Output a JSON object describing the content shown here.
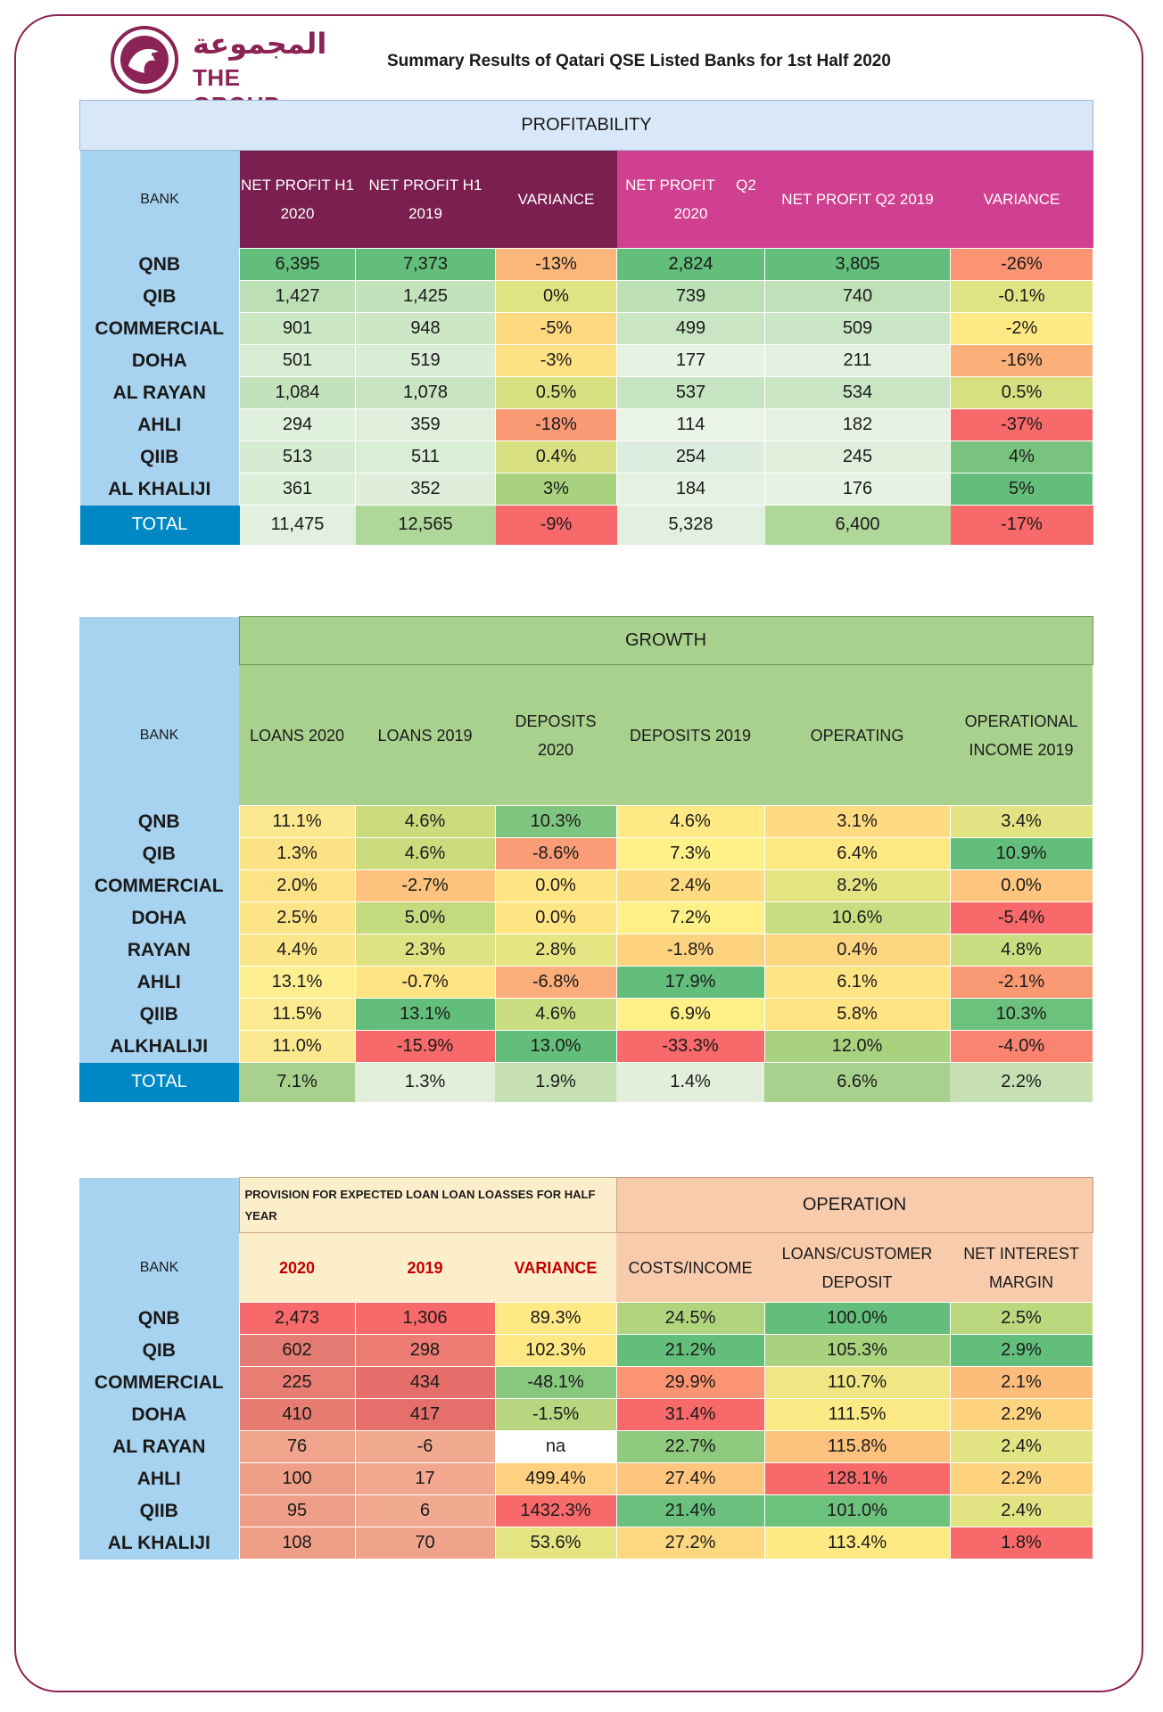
{
  "header": {
    "logo_arabic": "المجموعة",
    "logo_english": "THE GROUP",
    "title": "Summary Results of Qatari QSE Listed Banks for 1st Half 2020"
  },
  "colors": {
    "brand": "#8b2355",
    "bank_col": "#a8d3f0",
    "total": "#0088c4",
    "h1_header": "#7a1f4f",
    "q2_header": "#d04090",
    "growth_header": "#a9d18e",
    "provision_header": "#fdeecb",
    "operation_header": "#f8cbad"
  },
  "profitability": {
    "section_title": "PROFITABILITY",
    "bank_header": "BANK",
    "headers": [
      "NET PROFIT H1 2020",
      "NET PROFIT H1 2019",
      "VARIANCE",
      "NET PROFIT     Q2 2020",
      "NET PROFIT Q2 2019",
      "VARIANCE"
    ],
    "rows": [
      {
        "bank": "QNB",
        "values": [
          "6,395",
          "7,373",
          "-13%",
          "2,824",
          "3,805",
          "-26%"
        ],
        "colors": [
          "#63be7b",
          "#63be7b",
          "#fbb77a",
          "#63be7b",
          "#63be7b",
          "#fa9473"
        ]
      },
      {
        "bank": "QIB",
        "values": [
          "1,427",
          "1,425",
          "0%",
          "739",
          "740",
          "-0.1%"
        ],
        "colors": [
          "#bcdfb5",
          "#c2e2bb",
          "#e0e383",
          "#bde0b7",
          "#bfe0b9",
          "#e0e383"
        ]
      },
      {
        "bank": "COMMERCIAL",
        "values": [
          "901",
          "948",
          "-5%",
          "499",
          "509",
          "-2%"
        ],
        "colors": [
          "#cae6c3",
          "#cde7c6",
          "#fed980",
          "#c9e5c4",
          "#cae5c5",
          "#ffe984"
        ]
      },
      {
        "bank": "DOHA",
        "values": [
          "501",
          "519",
          "-3%",
          "177",
          "211",
          "-16%"
        ],
        "colors": [
          "#d7ecd3",
          "#d9ecd5",
          "#fee182",
          "#e6f2e3",
          "#e2f0df",
          "#fbb07a"
        ]
      },
      {
        "bank": "AL RAYAN",
        "values": [
          "1,084",
          "1,078",
          "0.5%",
          "537",
          "534",
          "0.5%"
        ],
        "colors": [
          "#c3e2bc",
          "#c8e4c1",
          "#d6e081",
          "#c7e4c2",
          "#c9e5c4",
          "#d6e081"
        ]
      },
      {
        "bank": "AHLI",
        "values": [
          "294",
          "359",
          "-18%",
          "114",
          "182",
          "-37%"
        ],
        "colors": [
          "#dff0dc",
          "#dfefdb",
          "#fa9a74",
          "#e9f4e7",
          "#e5f2e2",
          "#f8696b"
        ]
      },
      {
        "bank": "QIIB",
        "values": [
          "513",
          "511",
          "0.4%",
          "254",
          "245",
          "4%"
        ],
        "colors": [
          "#d6ebd2",
          "#daedd6",
          "#d8e081",
          "#dcede0",
          "#dfefdc",
          "#78c47e"
        ]
      },
      {
        "bank": "AL KHALIJI",
        "values": [
          "361",
          "352",
          "3%",
          "184",
          "176",
          "5%"
        ],
        "colors": [
          "#dcefd8",
          "#deeeda",
          "#a9d27f",
          "#e5f2e2",
          "#e6f2e3",
          "#63be7b"
        ]
      }
    ],
    "total": {
      "label": "TOTAL",
      "values": [
        "11,475",
        "12,565",
        "-9%",
        "5,328",
        "6,400",
        "-17%"
      ],
      "colors": [
        "#e2f0df",
        "#b0d79a",
        "#f8696b",
        "#e2f0df",
        "#b0d79a",
        "#f8696b"
      ]
    }
  },
  "growth": {
    "section_title": "GROWTH",
    "bank_header": "BANK",
    "headers": [
      "LOANS 2020",
      "LOANS 2019",
      "DEPOSITS 2020",
      "DEPOSITS 2019",
      "OPERATING",
      "OPERATIONAL INCOME 2019"
    ],
    "rows": [
      {
        "bank": "QNB",
        "values": [
          "11.1%",
          "4.6%",
          "10.3%",
          "4.6%",
          "3.1%",
          "3.4%"
        ],
        "colors": [
          "#fce98f",
          "#cbdc7f",
          "#7ec57f",
          "#ffe984",
          "#fedb81",
          "#e3e383"
        ]
      },
      {
        "bank": "QIB",
        "values": [
          "1.3%",
          "4.6%",
          "-8.6%",
          "7.3%",
          "6.4%",
          "10.9%"
        ],
        "colors": [
          "#fde285",
          "#cbdc7f",
          "#fa9c75",
          "#fff088",
          "#fee884",
          "#63be7b"
        ]
      },
      {
        "bank": "COMMERCIAL",
        "values": [
          "2.0%",
          "-2.7%",
          "0.0%",
          "2.4%",
          "8.2%",
          "0.0%"
        ],
        "colors": [
          "#fde386",
          "#fdc27d",
          "#ffe584",
          "#fedb81",
          "#e5e483",
          "#fdc57e"
        ]
      },
      {
        "bank": "DOHA",
        "values": [
          "2.5%",
          "5.0%",
          "0.0%",
          "7.2%",
          "10.6%",
          "-5.4%"
        ],
        "colors": [
          "#fde487",
          "#c3da7f",
          "#ffe584",
          "#fff088",
          "#c8dd81",
          "#f8696b"
        ]
      },
      {
        "bank": "RAYAN",
        "values": [
          "4.4%",
          "2.3%",
          "2.8%",
          "-1.8%",
          "0.4%",
          "4.8%"
        ],
        "colors": [
          "#fde689",
          "#dee282",
          "#e6e483",
          "#fed380",
          "#fed580",
          "#cade81"
        ]
      },
      {
        "bank": "AHLI",
        "values": [
          "13.1%",
          "-0.7%",
          "-6.8%",
          "17.9%",
          "6.1%",
          "-2.1%"
        ],
        "colors": [
          "#fcee91",
          "#fee482",
          "#fbae79",
          "#63be7b",
          "#fee483",
          "#fa9a74"
        ]
      },
      {
        "bank": "QIIB",
        "values": [
          "11.5%",
          "13.1%",
          "4.6%",
          "6.9%",
          "5.8%",
          "10.3%"
        ],
        "colors": [
          "#fcea90",
          "#63be7b",
          "#cbdd81",
          "#ffef87",
          "#fee383",
          "#6cc17c"
        ]
      },
      {
        "bank": "ALKHALIJI",
        "values": [
          "11.0%",
          "-15.9%",
          "13.0%",
          "-33.3%",
          "12.0%",
          "-4.0%"
        ],
        "colors": [
          "#fce98f",
          "#f8696b",
          "#63be7b",
          "#f8696b",
          "#a9d27f",
          "#f98470"
        ]
      }
    ],
    "total": {
      "label": "TOTAL",
      "values": [
        "7.1%",
        "1.3%",
        "1.9%",
        "1.4%",
        "6.6%",
        "2.2%"
      ],
      "colors": [
        "#a9d18e",
        "#e2efda",
        "#c6e0b4",
        "#e2efda",
        "#a9d18e",
        "#c6e0b4"
      ]
    }
  },
  "provision": {
    "section_title": "PROVISION FOR EXPECTED LOAN LOAN LOASSES FOR HALF YEAR",
    "operation_title": "OPERATION",
    "bank_header": "BANK",
    "headers": [
      "2020",
      "2019",
      "VARIANCE",
      "COSTS/INCOME",
      "LOANS/CUSTOMER DEPOSIT",
      "NET INTEREST MARGIN"
    ],
    "rows": [
      {
        "bank": "QNB",
        "values": [
          "2,473",
          "1,306",
          "89.3%",
          "24.5%",
          "100.0%",
          "2.5%"
        ],
        "colors": [
          "#f8696b",
          "#f8696b",
          "#ffe984",
          "#b1d47f",
          "#63be7b",
          "#bbd87f"
        ]
      },
      {
        "bank": "QIB",
        "values": [
          "602",
          "298",
          "102.3%",
          "21.2%",
          "105.3%",
          "2.9%"
        ],
        "colors": [
          "#e57c73",
          "#ec7c74",
          "#ffe883",
          "#63be7b",
          "#a9d27f",
          "#63be7b"
        ]
      },
      {
        "bank": "COMMERCIAL",
        "values": [
          "225",
          "434",
          "-48.1%",
          "29.9%",
          "110.7%",
          "2.1%"
        ],
        "colors": [
          "#e77d73",
          "#e66e6a",
          "#87c77e",
          "#fa9473",
          "#f0e784",
          "#fcbd7b"
        ]
      },
      {
        "bank": "DOHA",
        "values": [
          "410",
          "417",
          "-1.5%",
          "31.4%",
          "111.5%",
          "2.2%"
        ],
        "colors": [
          "#e77c72",
          "#e66f6b",
          "#b8d67f",
          "#f8696b",
          "#fbe985",
          "#fed380"
        ]
      },
      {
        "bank": "AL RAYAN",
        "values": [
          "76",
          "-6",
          "na",
          "22.7%",
          "115.8%",
          "2.4%"
        ],
        "colors": [
          "#f0a48c",
          "#f1a98f",
          "#ffffff",
          "#8ec97e",
          "#fcc17c",
          "#e2e383"
        ]
      },
      {
        "bank": "AHLI",
        "values": [
          "100",
          "17",
          "499.4%",
          "27.4%",
          "128.1%",
          "2.2%"
        ],
        "colors": [
          "#ef9f88",
          "#f2a78e",
          "#fed07f",
          "#fdc57e",
          "#f8696b",
          "#fed380"
        ]
      },
      {
        "bank": "QIIB",
        "values": [
          "95",
          "6",
          "1432.3%",
          "21.4%",
          "101.0%",
          "2.4%"
        ],
        "colors": [
          "#ef9f89",
          "#f1aa90",
          "#f8696b",
          "#6ac07c",
          "#6cc17c",
          "#e2e383"
        ]
      },
      {
        "bank": "AL KHALIJI",
        "values": [
          "108",
          "70",
          "53.6%",
          "27.2%",
          "113.4%",
          "1.8%"
        ],
        "colors": [
          "#ef9e87",
          "#f0a38b",
          "#e4e483",
          "#fed881",
          "#fee983",
          "#f8696b"
        ]
      }
    ]
  }
}
